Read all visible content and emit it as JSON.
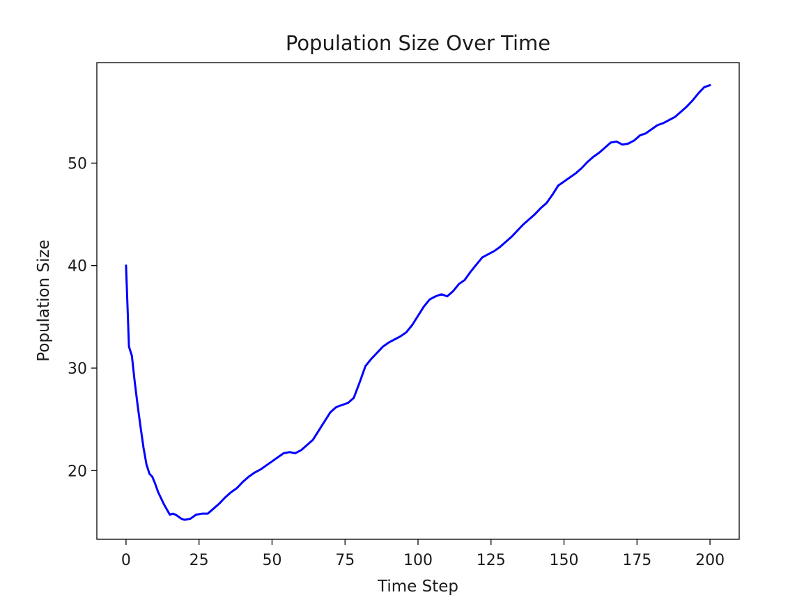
{
  "chart_data": {
    "type": "line",
    "title": "Population Size Over Time",
    "xlabel": "Time Step",
    "ylabel": "Population Size",
    "xlim": [
      -10,
      210
    ],
    "ylim": [
      13.3,
      59.8
    ],
    "xticks": [
      0,
      25,
      50,
      75,
      100,
      125,
      150,
      175,
      200
    ],
    "yticks": [
      20,
      30,
      40,
      50
    ],
    "grid": false,
    "series": [
      {
        "color": "#0000ff",
        "x": [
          0,
          1,
          2,
          3,
          4,
          5,
          6,
          7,
          8,
          9,
          10,
          11,
          12,
          13,
          14,
          15,
          16,
          17,
          18,
          19,
          20,
          22,
          24,
          26,
          28,
          30,
          32,
          34,
          36,
          38,
          40,
          42,
          44,
          46,
          48,
          50,
          52,
          54,
          56,
          58,
          60,
          62,
          64,
          66,
          68,
          70,
          72,
          74,
          76,
          78,
          80,
          82,
          84,
          86,
          88,
          90,
          92,
          94,
          96,
          98,
          100,
          102,
          104,
          106,
          108,
          110,
          112,
          114,
          116,
          118,
          120,
          122,
          124,
          126,
          128,
          130,
          132,
          134,
          136,
          138,
          140,
          142,
          144,
          146,
          148,
          150,
          152,
          154,
          156,
          158,
          160,
          162,
          164,
          166,
          168,
          170,
          172,
          174,
          176,
          178,
          180,
          182,
          184,
          186,
          188,
          190,
          192,
          194,
          196,
          198,
          200
        ],
        "y": [
          40.0,
          32.1,
          31.2,
          28.6,
          26.3,
          24.2,
          22.2,
          20.6,
          19.7,
          19.4,
          18.7,
          17.9,
          17.3,
          16.7,
          16.2,
          15.7,
          15.8,
          15.7,
          15.5,
          15.3,
          15.2,
          15.3,
          15.7,
          15.8,
          15.8,
          16.3,
          16.8,
          17.4,
          17.9,
          18.3,
          18.9,
          19.4,
          19.8,
          20.1,
          20.5,
          20.9,
          21.3,
          21.7,
          21.8,
          21.7,
          22.0,
          22.5,
          23.0,
          23.9,
          24.8,
          25.7,
          26.2,
          26.4,
          26.6,
          27.1,
          28.6,
          30.2,
          30.9,
          31.5,
          32.1,
          32.5,
          32.8,
          33.1,
          33.5,
          34.2,
          35.1,
          36.0,
          36.7,
          37.0,
          37.2,
          37.0,
          37.5,
          38.2,
          38.6,
          39.4,
          40.1,
          40.8,
          41.1,
          41.4,
          41.8,
          42.3,
          42.8,
          43.4,
          44.0,
          44.5,
          45.0,
          45.6,
          46.1,
          46.9,
          47.8,
          48.2,
          48.6,
          49.0,
          49.5,
          50.1,
          50.6,
          51.0,
          51.5,
          52.0,
          52.1,
          51.8,
          51.9,
          52.2,
          52.7,
          52.9,
          53.3,
          53.7,
          53.9,
          54.2,
          54.5,
          55.0,
          55.5,
          56.1,
          56.8,
          57.4,
          57.6
        ]
      }
    ]
  }
}
